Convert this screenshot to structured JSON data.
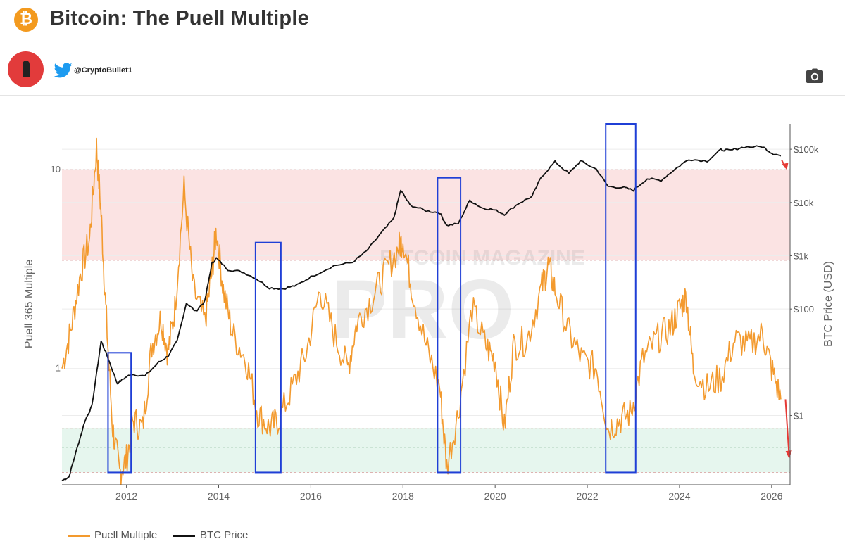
{
  "header": {
    "logo_symbol": "₿",
    "title": "Bitcoin: The Puell Multiple"
  },
  "author": {
    "handle": "@CryptoBullet1",
    "icons": [
      "avatar-bullet-icon",
      "twitter-bird-icon",
      "camera-icon"
    ]
  },
  "colors": {
    "puell": "#f39a2e",
    "price": "#111111",
    "red_band": "#fbe3e3",
    "green_band": "#e6f6ee",
    "box": "#1f3fd6",
    "arrow": "#e53935"
  },
  "watermark": {
    "line1": "BITCOIN MAGAZINE",
    "line2": "PRO"
  },
  "chart_data": {
    "type": "line",
    "title": "Bitcoin: The Puell Multiple",
    "x_range": [
      2010.6,
      2026.4
    ],
    "x_ticks": [
      "2012",
      "2014",
      "2016",
      "2018",
      "2020",
      "2022",
      "2024",
      "2026"
    ],
    "left_axis": {
      "label": "Puell 365 Multiple",
      "scale": "log",
      "range": [
        0.26,
        17
      ],
      "tick_labels": [
        "10",
        "1"
      ]
    },
    "right_axis": {
      "label": "BTC Price (USD)",
      "scale": "log",
      "range": [
        0.05,
        300000
      ],
      "tick_labels": [
        "$100k",
        "$10k",
        "$1k",
        "$100",
        "$1"
      ]
    },
    "grid": true,
    "legend_position": "bottom-left",
    "bands": [
      {
        "zone": "overvalued",
        "range": [
          3.5,
          10
        ],
        "color": "#fbe3e3"
      },
      {
        "zone": "undervalued",
        "range": [
          0.3,
          0.5
        ],
        "color": "#e6f6ee"
      }
    ],
    "highlight_boxes": [
      {
        "x0": 2011.6,
        "x1": 2012.1,
        "y0": 0.3,
        "y1": 1.2
      },
      {
        "x0": 2014.8,
        "x1": 2015.35,
        "y0": 0.3,
        "y1": 4.3
      },
      {
        "x0": 2018.75,
        "x1": 2019.25,
        "y0": 0.3,
        "y1": 9.1
      },
      {
        "x0": 2022.4,
        "x1": 2023.05,
        "y0": 0.3,
        "y1": 28.0
      }
    ],
    "series": [
      {
        "name": "Puell Multiple",
        "axis": "left",
        "x": [
          2010.6,
          2010.8,
          2011.0,
          2011.2,
          2011.35,
          2011.45,
          2011.55,
          2011.7,
          2011.85,
          2012.0,
          2012.15,
          2012.35,
          2012.55,
          2012.75,
          2012.9,
          2013.05,
          2013.25,
          2013.45,
          2013.7,
          2013.85,
          2013.95,
          2014.1,
          2014.3,
          2014.6,
          2014.85,
          2015.1,
          2015.3,
          2015.6,
          2015.9,
          2016.2,
          2016.5,
          2016.8,
          2017.0,
          2017.3,
          2017.6,
          2017.9,
          2018.0,
          2018.2,
          2018.5,
          2018.8,
          2018.95,
          2019.2,
          2019.5,
          2019.8,
          2020.0,
          2020.2,
          2020.4,
          2020.7,
          2021.0,
          2021.15,
          2021.3,
          2021.6,
          2021.9,
          2022.2,
          2022.45,
          2022.7,
          2022.95,
          2023.2,
          2023.5,
          2023.8,
          2024.0,
          2024.15,
          2024.3,
          2024.6,
          2024.9,
          2025.2,
          2025.5,
          2025.8,
          2026.0,
          2026.2
        ],
        "values": [
          1.0,
          1.6,
          3.0,
          4.5,
          13.0,
          6.0,
          2.0,
          0.5,
          0.3,
          0.35,
          0.55,
          0.5,
          1.3,
          1.8,
          1.2,
          2.0,
          8.0,
          2.5,
          1.7,
          3.0,
          5.0,
          2.5,
          1.5,
          1.1,
          0.6,
          0.5,
          0.55,
          0.8,
          1.2,
          2.5,
          1.5,
          1.0,
          1.7,
          2.2,
          3.0,
          4.0,
          4.5,
          2.5,
          1.3,
          0.8,
          0.32,
          0.6,
          2.0,
          1.3,
          1.1,
          0.5,
          1.3,
          1.4,
          2.5,
          3.3,
          2.5,
          1.5,
          1.1,
          1.0,
          0.5,
          0.55,
          0.6,
          1.1,
          1.4,
          1.6,
          2.0,
          2.3,
          1.0,
          0.8,
          0.9,
          1.4,
          1.3,
          1.5,
          1.0,
          0.7
        ]
      },
      {
        "name": "BTC Price",
        "axis": "right",
        "x": [
          2010.6,
          2010.75,
          2010.9,
          2011.1,
          2011.25,
          2011.45,
          2011.6,
          2011.8,
          2011.95,
          2012.1,
          2012.4,
          2012.7,
          2012.9,
          2013.1,
          2013.3,
          2013.5,
          2013.7,
          2013.85,
          2013.95,
          2014.2,
          2014.5,
          2014.8,
          2015.1,
          2015.4,
          2015.7,
          2016.0,
          2016.5,
          2016.9,
          2017.2,
          2017.5,
          2017.8,
          2017.95,
          2018.15,
          2018.5,
          2018.8,
          2018.95,
          2019.2,
          2019.45,
          2019.7,
          2020.0,
          2020.2,
          2020.5,
          2020.8,
          2021.0,
          2021.3,
          2021.6,
          2021.85,
          2022.2,
          2022.45,
          2022.8,
          2023.0,
          2023.3,
          2023.6,
          2023.9,
          2024.2,
          2024.6,
          2024.9,
          2025.1,
          2025.4,
          2025.8,
          2026.0,
          2026.2
        ],
        "values": [
          0.06,
          0.07,
          0.2,
          0.8,
          1.5,
          25,
          12,
          4,
          5,
          6,
          5.5,
          10,
          13,
          25,
          130,
          90,
          140,
          700,
          900,
          550,
          500,
          380,
          250,
          240,
          280,
          400,
          650,
          750,
          1200,
          2500,
          5000,
          17000,
          9000,
          7000,
          6400,
          3700,
          4000,
          11000,
          8000,
          7200,
          6000,
          9500,
          13000,
          30000,
          58000,
          35000,
          60000,
          42000,
          20000,
          19000,
          17000,
          28000,
          26000,
          42000,
          65000,
          60000,
          98000,
          95000,
          110000,
          112000,
          85000,
          75000
        ]
      }
    ]
  }
}
